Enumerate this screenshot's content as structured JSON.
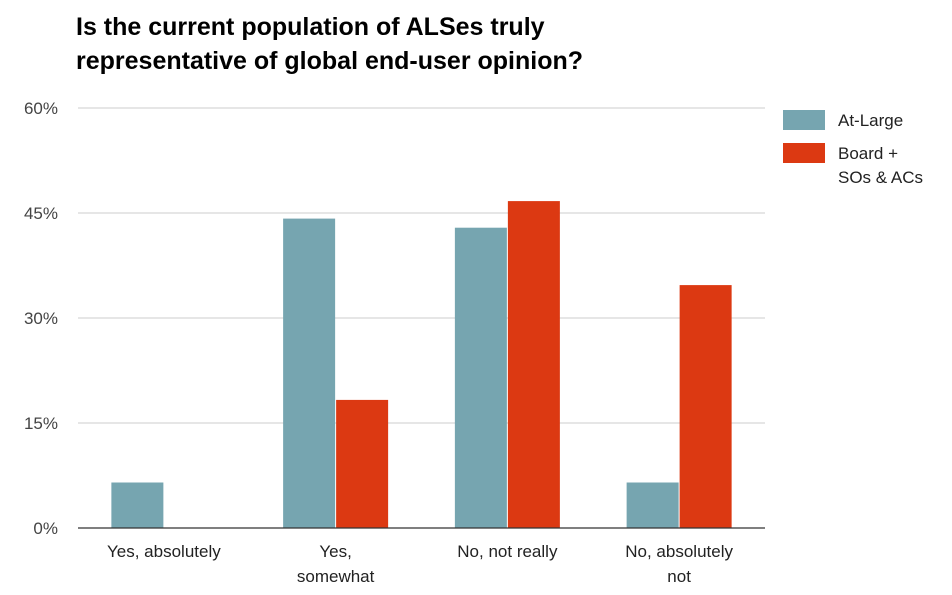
{
  "chart_data": {
    "type": "bar",
    "title": "Is the current population of ALSes truly representative of global end-user opinion?",
    "categories": [
      [
        "Yes, absolutely"
      ],
      [
        "Yes,",
        "somewhat"
      ],
      [
        "No, not really"
      ],
      [
        "No, absolutely",
        "not"
      ]
    ],
    "series": [
      {
        "name": [
          "At-Large"
        ],
        "color": "#76a5b0",
        "values": [
          6.5,
          44.2,
          42.9,
          6.5
        ]
      },
      {
        "name": [
          "Board +",
          "SOs & ACs"
        ],
        "color": "#dc3912",
        "values": [
          0,
          18.3,
          46.7,
          34.7
        ]
      }
    ],
    "yticks": [
      "0%",
      "15%",
      "30%",
      "45%",
      "60%"
    ],
    "ytick_values": [
      0,
      15,
      30,
      45,
      60
    ],
    "ylim": [
      0,
      60
    ],
    "grid": true,
    "legend_position": "right"
  }
}
